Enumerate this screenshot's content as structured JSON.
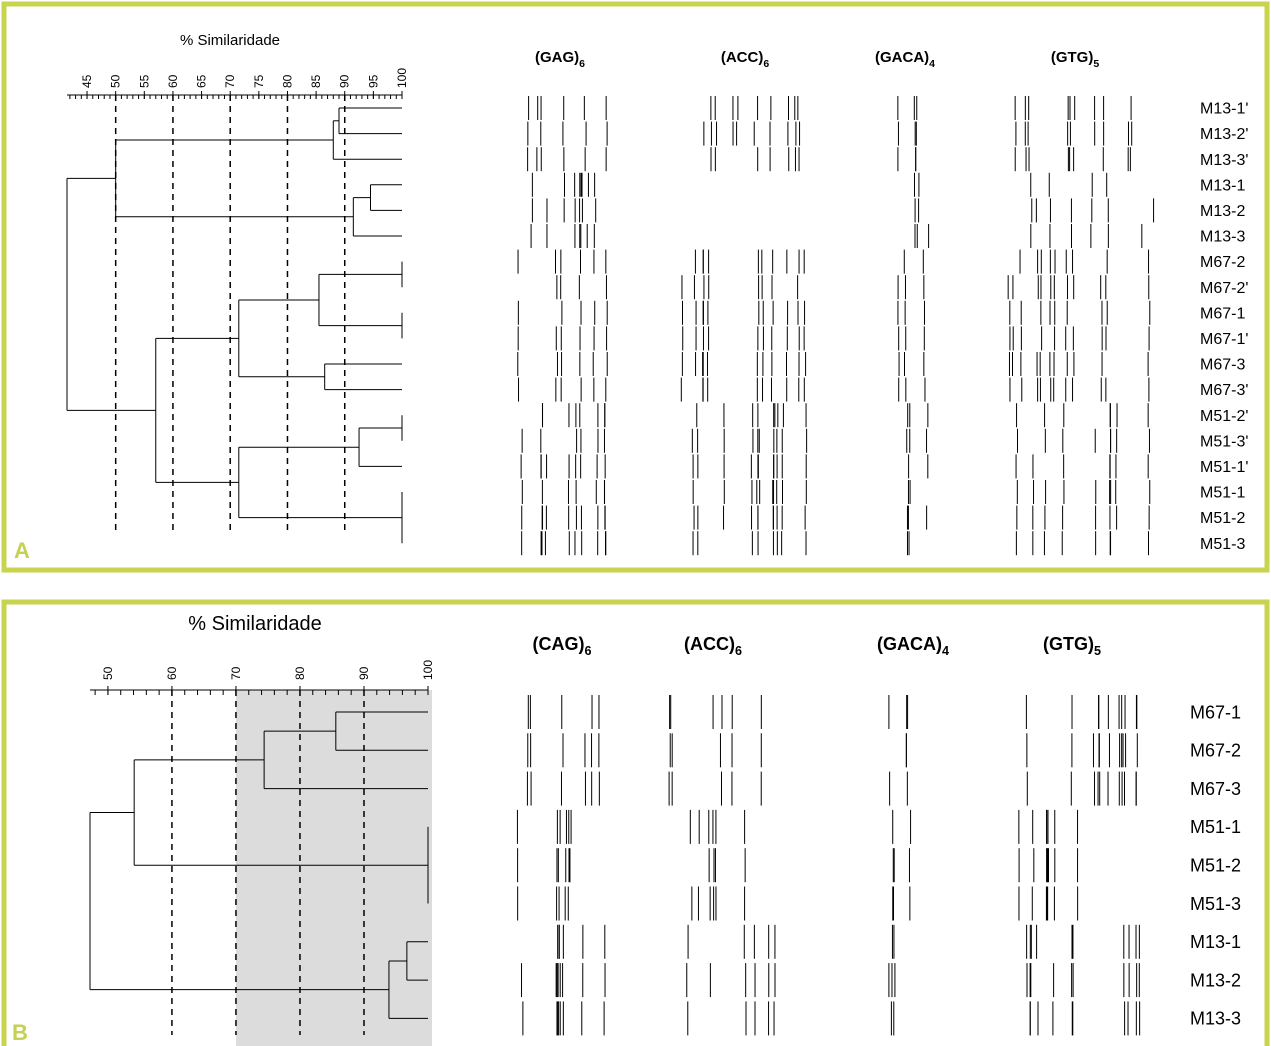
{
  "panels": [
    {
      "letter": "A",
      "axis_title": "% Similaridade",
      "xlim": [
        41.5,
        100
      ],
      "ticks": [
        45,
        50,
        55,
        60,
        65,
        70,
        75,
        80,
        85,
        90,
        95,
        100
      ],
      "minor_tick_step": 1,
      "dashed_lines": [
        50,
        60,
        70,
        80,
        90
      ],
      "primers": [
        {
          "name": "(GAG)",
          "subscript": "6"
        },
        {
          "name": "(ACC)",
          "subscript": "6"
        },
        {
          "name": "(GACA)",
          "subscript": "4"
        },
        {
          "name": "(GTG)",
          "subscript": "5"
        }
      ],
      "tree": {
        "similarity": 41.5,
        "children": [
          {
            "similarity": 50,
            "children": [
              {
                "similarity": 88,
                "children": [
                  {
                    "similarity": 89,
                    "children": [
                      {
                        "label": "M13-1'"
                      },
                      {
                        "label": "M13-2'"
                      }
                    ]
                  },
                  {
                    "label": "M13-3'"
                  }
                ]
              },
              {
                "similarity": 91.5,
                "children": [
                  {
                    "similarity": 94.5,
                    "children": [
                      {
                        "label": "M13-1"
                      },
                      {
                        "label": "M13-2"
                      }
                    ]
                  },
                  {
                    "label": "M13-3"
                  }
                ]
              }
            ]
          },
          {
            "similarity": 57,
            "children": [
              {
                "similarity": 71.5,
                "children": [
                  {
                    "similarity": 85.5,
                    "children": [
                      {
                        "similarity": 100,
                        "children": [
                          {
                            "label": "M67-2"
                          },
                          {
                            "label": "M67-2'"
                          }
                        ]
                      },
                      {
                        "similarity": 100,
                        "children": [
                          {
                            "label": "M67-1"
                          },
                          {
                            "label": "M67-1'"
                          }
                        ]
                      }
                    ]
                  },
                  {
                    "similarity": 86.5,
                    "children": [
                      {
                        "label": "M67-3"
                      },
                      {
                        "label": "M67-3'"
                      }
                    ]
                  }
                ]
              },
              {
                "similarity": 71.5,
                "children": [
                  {
                    "similarity": 92.5,
                    "children": [
                      {
                        "similarity": 100,
                        "children": [
                          {
                            "label": "M51-2'"
                          },
                          {
                            "label": "M51-3'"
                          }
                        ]
                      },
                      {
                        "label": "M51-1'"
                      }
                    ]
                  },
                  {
                    "similarity": 100,
                    "children": [
                      {
                        "label": "M51-1"
                      },
                      {
                        "label": "M51-2"
                      },
                      {
                        "label": "M51-3"
                      }
                    ]
                  }
                ]
              }
            ]
          }
        ]
      }
    },
    {
      "letter": "B",
      "axis_title": "% Similaridade",
      "xlim": [
        47.2,
        100
      ],
      "ticks": [
        50,
        60,
        70,
        80,
        90,
        100
      ],
      "minor_tick_step": 2,
      "dashed_lines": [
        60,
        70,
        80,
        90
      ],
      "shaded_range": [
        70,
        100
      ],
      "primers": [
        {
          "name": "(CAG)",
          "subscript": "6"
        },
        {
          "name": "(ACC)",
          "subscript": "6"
        },
        {
          "name": "(GACA)",
          "subscript": "4"
        },
        {
          "name": "(GTG)",
          "subscript": "5"
        }
      ],
      "tree": {
        "similarity": 47.2,
        "children": [
          {
            "similarity": 54.1,
            "children": [
              {
                "similarity": 74.4,
                "children": [
                  {
                    "similarity": 85.6,
                    "children": [
                      {
                        "label": "M67-1"
                      },
                      {
                        "label": "M67-2"
                      }
                    ]
                  },
                  {
                    "label": "M67-3"
                  }
                ]
              },
              {
                "similarity": 100,
                "children": [
                  {
                    "label": "M51-1"
                  },
                  {
                    "label": "M51-2"
                  },
                  {
                    "label": "M51-3"
                  }
                ]
              }
            ]
          },
          {
            "similarity": 93.9,
            "children": [
              {
                "similarity": 96.7,
                "children": [
                  {
                    "label": "M13-1"
                  },
                  {
                    "label": "M13-2"
                  }
                ]
              },
              {
                "label": "M13-3"
              }
            ]
          }
        ]
      }
    }
  ]
}
